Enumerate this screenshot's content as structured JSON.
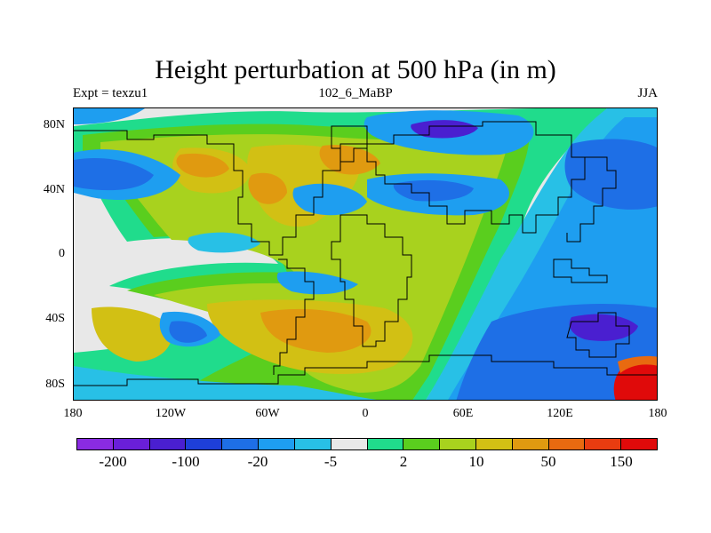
{
  "title": "Height perturbation at 500 hPa (in m)",
  "subtitle_left": "Expt = texzu1",
  "subtitle_center": "102_6_MaBP",
  "subtitle_right": "JJA",
  "y_axis_labels": [
    "80N",
    "40N",
    "0",
    "40S",
    "80S"
  ],
  "x_axis_labels": [
    "180",
    "120W",
    "60W",
    "0",
    "60E",
    "120E",
    "180"
  ],
  "colorbar": {
    "colors": [
      "#8a2be2",
      "#6a1fd8",
      "#4a1fd0",
      "#1e3fd8",
      "#1e6fe6",
      "#1e9ef0",
      "#28c0e6",
      "#e8e8e8",
      "#20dc8c",
      "#5ace1e",
      "#a8d21e",
      "#d2c014",
      "#e09a10",
      "#e86a10",
      "#e83c10",
      "#e00a0a"
    ],
    "labels": [
      "-200",
      "-100",
      "-20",
      "-5",
      "2",
      "10",
      "50",
      "150"
    ]
  },
  "map": {
    "background_color": "#e8e8e8",
    "coastline_color": "#000000"
  }
}
